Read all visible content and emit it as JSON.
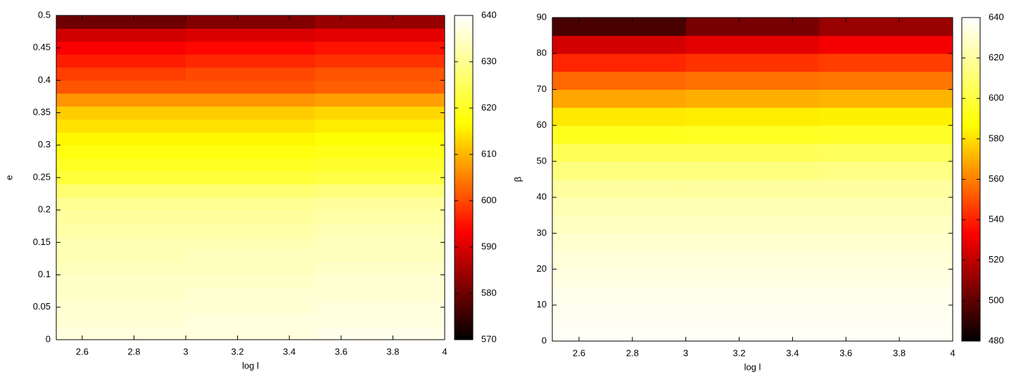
{
  "chart_data": [
    {
      "type": "heatmap",
      "xlabel": "log l",
      "ylabel": "e",
      "xlim": [
        2.5,
        4
      ],
      "xticks": [
        2.6,
        2.8,
        3,
        3.2,
        3.4,
        3.6,
        3.8,
        4
      ],
      "ylim": [
        0,
        0.5
      ],
      "yticks": [
        0,
        0.05,
        0.1,
        0.15,
        0.2,
        0.25,
        0.3,
        0.35,
        0.4,
        0.45,
        0.5
      ],
      "xbins": [
        2.5,
        3,
        3.5,
        4
      ],
      "ybins": [
        0,
        0.02,
        0.04,
        0.06,
        0.08,
        0.1,
        0.12,
        0.14,
        0.16,
        0.18,
        0.2,
        0.22,
        0.24,
        0.26,
        0.28,
        0.3,
        0.32,
        0.34,
        0.36,
        0.38,
        0.4,
        0.42,
        0.44,
        0.46,
        0.48,
        0.5
      ],
      "values": [
        [
          637,
          637,
          638
        ],
        [
          636,
          637,
          637
        ],
        [
          636,
          636,
          637
        ],
        [
          635,
          636,
          636
        ],
        [
          635,
          635,
          636
        ],
        [
          634,
          634,
          635
        ],
        [
          633,
          634,
          634
        ],
        [
          633,
          633,
          634
        ],
        [
          632,
          632,
          633
        ],
        [
          631,
          631,
          632
        ],
        [
          630,
          630,
          631
        ],
        [
          627,
          627,
          628
        ],
        [
          622,
          622,
          623
        ],
        [
          620,
          620,
          621
        ],
        [
          618,
          618,
          619
        ],
        [
          616,
          616,
          617
        ],
        [
          614,
          614,
          615
        ],
        [
          612,
          612,
          613
        ],
        [
          607,
          607,
          608
        ],
        [
          601,
          601,
          602
        ],
        [
          599,
          600,
          601
        ],
        [
          596,
          597,
          598
        ],
        [
          593,
          594,
          595
        ],
        [
          589,
          590,
          591
        ],
        [
          580,
          582,
          584
        ]
      ],
      "colormap": [
        "#000000",
        "#ff0000",
        "#ffff00",
        "#ffffff"
      ],
      "clim": [
        570,
        640
      ],
      "cticks": [
        570,
        580,
        590,
        600,
        610,
        620,
        630,
        640
      ]
    },
    {
      "type": "heatmap",
      "xlabel": "log l",
      "ylabel": "β",
      "xlim": [
        2.5,
        4
      ],
      "xticks": [
        2.6,
        2.8,
        3,
        3.2,
        3.4,
        3.6,
        3.8,
        4
      ],
      "ylim": [
        0,
        90
      ],
      "yticks": [
        0,
        10,
        20,
        30,
        40,
        50,
        60,
        70,
        80,
        90
      ],
      "xbins": [
        2.5,
        3,
        3.5,
        4
      ],
      "ybins": [
        0,
        5,
        10,
        15,
        20,
        25,
        30,
        35,
        40,
        45,
        50,
        55,
        60,
        65,
        70,
        75,
        80,
        85,
        90
      ],
      "values": [
        [
          638,
          638,
          638
        ],
        [
          637,
          637,
          637
        ],
        [
          636,
          636,
          636
        ],
        [
          634,
          634,
          634
        ],
        [
          632,
          632,
          632
        ],
        [
          630,
          630,
          630
        ],
        [
          627,
          627,
          627
        ],
        [
          624,
          624,
          624
        ],
        [
          620,
          620,
          620
        ],
        [
          613,
          613,
          614
        ],
        [
          605,
          605,
          606
        ],
        [
          593,
          594,
          595
        ],
        [
          582,
          583,
          584
        ],
        [
          568,
          570,
          571
        ],
        [
          555,
          557,
          558
        ],
        [
          541,
          544,
          546
        ],
        [
          524,
          528,
          531
        ],
        [
          495,
          505,
          512
        ]
      ],
      "colormap": [
        "#000000",
        "#ff0000",
        "#ffff00",
        "#ffffff"
      ],
      "clim": [
        480,
        640
      ],
      "cticks": [
        480,
        500,
        520,
        540,
        560,
        580,
        600,
        620,
        640
      ]
    }
  ]
}
